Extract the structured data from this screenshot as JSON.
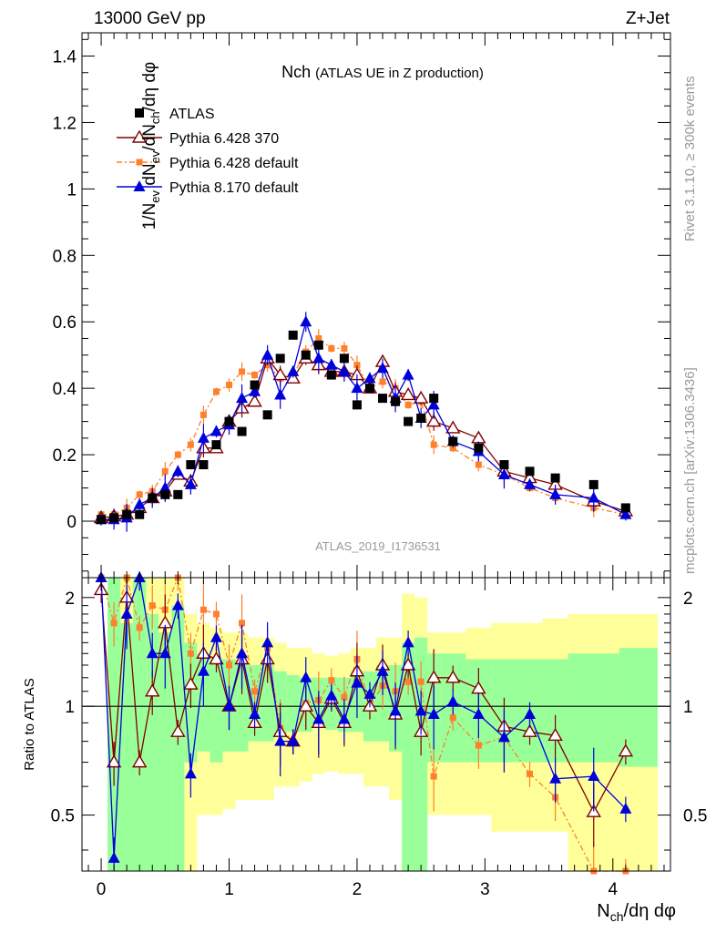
{
  "header": {
    "beam": "13000 GeV pp",
    "process": "Z+Jet"
  },
  "side": {
    "rivet": "Rivet 3.1.10, ≥ 300k events",
    "source": "mcplots.cern.ch [arXiv:1306.3436]"
  },
  "analysis_tag": "ATLAS_2019_I1736531",
  "colors": {
    "atlas": "#000000",
    "py6_370": "#800000",
    "py6_default": "#ff7f2a",
    "py8": "#0000dd",
    "band_inner": "#99ff99",
    "band_outer": "#ffff99"
  },
  "chart_data": [
    {
      "type": "scatter",
      "title_main": "Nch",
      "title_sub": "(ATLAS UE in Z production)",
      "ylabel": "1/N_ev dN_ev/dN_ch/dη dφ",
      "xlim": [
        -0.15,
        4.45
      ],
      "ylim": [
        -0.17,
        1.47
      ],
      "yticks": [
        "0",
        "0.2",
        "0.4",
        "0.6",
        "0.8",
        "1",
        "1.2",
        "1.4"
      ],
      "legend": [
        {
          "key": "atlas",
          "label": "ATLAS"
        },
        {
          "key": "py6_370",
          "label": "Pythia 6.428 370"
        },
        {
          "key": "py6_default",
          "label": "Pythia 6.428 default"
        },
        {
          "key": "py8",
          "label": "Pythia 8.170 default"
        }
      ],
      "x": [
        0.0,
        0.1,
        0.2,
        0.3,
        0.4,
        0.5,
        0.6,
        0.7,
        0.8,
        0.9,
        1.0,
        1.1,
        1.2,
        1.3,
        1.4,
        1.5,
        1.6,
        1.7,
        1.8,
        1.9,
        2.0,
        2.1,
        2.2,
        2.3,
        2.4,
        2.5,
        2.6,
        2.75,
        2.95,
        3.15,
        3.35,
        3.55,
        3.85,
        4.1
      ],
      "series": [
        {
          "key": "atlas",
          "name": "ATLAS",
          "marker": "square",
          "values": [
            0.005,
            0.01,
            0.02,
            0.02,
            0.07,
            0.08,
            0.08,
            0.17,
            0.17,
            0.23,
            0.3,
            0.27,
            0.41,
            0.32,
            0.49,
            0.56,
            0.5,
            0.53,
            0.44,
            0.49,
            0.35,
            0.4,
            0.37,
            0.36,
            0.3,
            0.31,
            0.37,
            0.24,
            0.22,
            0.17,
            0.15,
            0.13,
            0.11,
            0.04
          ]
        },
        {
          "key": "py6_370",
          "name": "Pythia 6.428 370",
          "marker": "triangle-open",
          "dash": "",
          "values": [
            0.01,
            0.015,
            0.02,
            0.04,
            0.07,
            0.09,
            0.14,
            0.12,
            0.22,
            0.22,
            0.3,
            0.34,
            0.36,
            0.49,
            0.44,
            0.43,
            0.49,
            0.47,
            0.45,
            0.45,
            0.44,
            0.4,
            0.48,
            0.39,
            0.38,
            0.37,
            0.3,
            0.28,
            0.25,
            0.15,
            0.13,
            0.11,
            0.06,
            0.03
          ]
        },
        {
          "key": "py6_default",
          "name": "Pythia 6.428 default",
          "marker": "square-small",
          "dash": "6,3,2,3",
          "values": [
            0.02,
            0.02,
            0.04,
            0.08,
            0.09,
            0.15,
            0.2,
            0.23,
            0.32,
            0.39,
            0.41,
            0.45,
            0.44,
            0.47,
            0.43,
            0.44,
            0.51,
            0.55,
            0.52,
            0.52,
            0.47,
            0.4,
            0.42,
            0.4,
            0.35,
            0.36,
            0.23,
            0.22,
            0.17,
            0.14,
            0.1,
            0.07,
            0.04,
            0.02
          ]
        },
        {
          "key": "py8",
          "name": "Pythia 8.170 default",
          "marker": "triangle-filled",
          "dash": "",
          "values": [
            0.005,
            0.005,
            0.01,
            0.05,
            0.07,
            0.1,
            0.15,
            0.11,
            0.25,
            0.27,
            0.29,
            0.37,
            0.39,
            0.5,
            0.38,
            0.45,
            0.6,
            0.49,
            0.47,
            0.45,
            0.4,
            0.43,
            0.46,
            0.37,
            0.44,
            0.31,
            0.35,
            0.24,
            0.21,
            0.14,
            0.11,
            0.08,
            0.07,
            0.02
          ]
        }
      ],
      "errors": {
        "py8": 0.03,
        "py6_default": 0.02,
        "py6_370": 0.02,
        "atlas": 0.005
      }
    },
    {
      "type": "scatter",
      "ylabel": "Ratio to ATLAS",
      "xlabel": "N_ch/dη dφ",
      "xlim": [
        -0.15,
        4.45
      ],
      "ylim": [
        0.35,
        2.27
      ],
      "yticks": [
        "0.5",
        "1",
        "2"
      ],
      "xticks": [
        "0",
        "1",
        "2",
        "3",
        "4"
      ],
      "reference_line": 1,
      "band_edges": [
        0.05,
        0.15,
        0.25,
        0.35,
        0.45,
        0.55,
        0.65,
        0.75,
        0.85,
        0.95,
        1.05,
        1.15,
        1.25,
        1.35,
        1.45,
        1.55,
        1.65,
        1.75,
        1.85,
        1.95,
        2.05,
        2.15,
        2.25,
        2.35,
        2.45,
        2.55,
        2.65,
        2.85,
        3.05,
        3.25,
        3.45,
        3.65,
        4.05,
        4.35
      ],
      "band_inner": [
        [
          0.35,
          2.27
        ],
        [
          0.35,
          1.7
        ],
        [
          0.35,
          2.27
        ],
        [
          0.35,
          1.8
        ],
        [
          0.35,
          1.6
        ],
        [
          0.35,
          1.9
        ],
        [
          0.7,
          1.5
        ],
        [
          0.75,
          1.4
        ],
        [
          0.7,
          1.35
        ],
        [
          0.75,
          1.35
        ],
        [
          0.75,
          1.32
        ],
        [
          0.8,
          1.3
        ],
        [
          0.8,
          1.3
        ],
        [
          0.82,
          1.25
        ],
        [
          0.85,
          1.22
        ],
        [
          0.85,
          1.2
        ],
        [
          0.87,
          1.2
        ],
        [
          0.86,
          1.2
        ],
        [
          0.85,
          1.2
        ],
        [
          0.85,
          1.25
        ],
        [
          0.8,
          1.25
        ],
        [
          0.8,
          1.3
        ],
        [
          0.75,
          1.3
        ],
        [
          0.35,
          1.5
        ],
        [
          0.35,
          1.55
        ],
        [
          0.7,
          1.4
        ],
        [
          0.7,
          1.4
        ],
        [
          0.7,
          1.35
        ],
        [
          0.7,
          1.35
        ],
        [
          0.7,
          1.35
        ],
        [
          0.7,
          1.35
        ],
        [
          0.7,
          1.4
        ],
        [
          0.68,
          1.45
        ]
      ],
      "band_outer": [
        [
          0.35,
          2.27
        ],
        [
          0.35,
          2.27
        ],
        [
          0.35,
          2.27
        ],
        [
          0.35,
          2.27
        ],
        [
          0.35,
          2.27
        ],
        [
          0.35,
          2.27
        ],
        [
          0.35,
          1.8
        ],
        [
          0.5,
          1.7
        ],
        [
          0.5,
          1.65
        ],
        [
          0.52,
          1.6
        ],
        [
          0.55,
          1.6
        ],
        [
          0.55,
          1.55
        ],
        [
          0.55,
          1.55
        ],
        [
          0.6,
          1.5
        ],
        [
          0.6,
          1.45
        ],
        [
          0.62,
          1.45
        ],
        [
          0.65,
          1.4
        ],
        [
          0.66,
          1.38
        ],
        [
          0.65,
          1.4
        ],
        [
          0.65,
          1.45
        ],
        [
          0.6,
          1.45
        ],
        [
          0.6,
          1.55
        ],
        [
          0.55,
          1.55
        ],
        [
          0.35,
          2.05
        ],
        [
          0.35,
          2.0
        ],
        [
          0.5,
          1.6
        ],
        [
          0.5,
          1.6
        ],
        [
          0.5,
          1.65
        ],
        [
          0.45,
          1.7
        ],
        [
          0.45,
          1.7
        ],
        [
          0.45,
          1.75
        ],
        [
          0.35,
          1.8
        ],
        [
          0.35,
          1.8
        ]
      ],
      "series": [
        {
          "key": "py6_370",
          "name": "Pythia 6.428 370",
          "values": [
            2.1,
            0.7,
            2.0,
            0.7,
            1.1,
            1.7,
            0.85,
            1.15,
            1.4,
            1.35,
            1.0,
            1.35,
            0.9,
            1.35,
            0.85,
            0.8,
            1.0,
            0.9,
            1.05,
            0.9,
            1.25,
            1.0,
            1.3,
            0.95,
            1.3,
            0.85,
            1.2,
            1.2,
            1.12,
            0.88,
            0.85,
            0.83,
            0.51,
            0.75
          ]
        },
        {
          "key": "py6_default",
          "name": "Pythia 6.428 default",
          "values": [
            2.27,
            1.7,
            2.27,
            1.65,
            1.9,
            1.85,
            2.27,
            1.4,
            1.85,
            1.8,
            1.3,
            1.7,
            1.1,
            1.45,
            0.87,
            0.8,
            1.02,
            1.04,
            1.18,
            1.06,
            1.35,
            1.0,
            1.14,
            1.1,
            1.17,
            1.17,
            0.64,
            0.93,
            0.78,
            0.82,
            0.65,
            0.56,
            0.35,
            0.35
          ]
        },
        {
          "key": "py8",
          "name": "Pythia 8.170 default",
          "values": [
            2.27,
            0.38,
            1.8,
            2.27,
            1.4,
            1.4,
            1.9,
            0.65,
            1.25,
            1.55,
            1.0,
            1.4,
            0.95,
            1.5,
            0.8,
            0.8,
            1.2,
            0.92,
            1.07,
            0.92,
            1.16,
            1.08,
            1.25,
            0.97,
            1.5,
            0.97,
            0.95,
            1.03,
            0.95,
            0.82,
            0.95,
            0.63,
            0.64,
            0.52
          ]
        }
      ]
    }
  ]
}
